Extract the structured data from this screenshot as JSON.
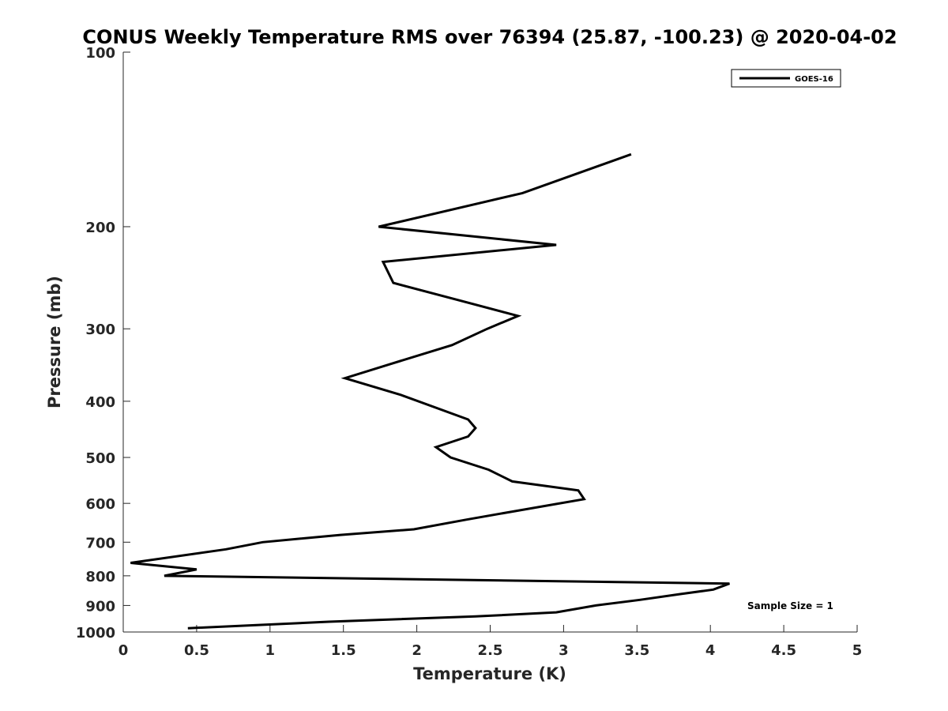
{
  "chart_data": {
    "type": "line",
    "title": "CONUS Weekly Temperature RMS over 76394 (25.87, -100.23) @ 2020-04-02",
    "xlabel": "Temperature (K)",
    "ylabel": "Pressure (mb)",
    "xlim": [
      0,
      5
    ],
    "ylim": [
      100,
      1000
    ],
    "y_scale": "log",
    "y_reversed": true,
    "grid": false,
    "legend_position": "top-right",
    "x_ticks": [
      "0",
      "0.5",
      "1",
      "1.5",
      "2",
      "2.5",
      "3",
      "3.5",
      "4",
      "4.5",
      "5"
    ],
    "y_ticks": [
      "100",
      "200",
      "300",
      "400",
      "500",
      "600",
      "700",
      "800",
      "900",
      "1000"
    ],
    "annotation": "Sample Size = 1",
    "series": [
      {
        "name": "GOES-16",
        "color": "#000000",
        "points": [
          {
            "temperature": 3.46,
            "pressure": 150
          },
          {
            "temperature": 2.72,
            "pressure": 175
          },
          {
            "temperature": 1.74,
            "pressure": 200
          },
          {
            "temperature": 2.95,
            "pressure": 215
          },
          {
            "temperature": 1.77,
            "pressure": 230
          },
          {
            "temperature": 1.84,
            "pressure": 250
          },
          {
            "temperature": 2.69,
            "pressure": 285
          },
          {
            "temperature": 2.48,
            "pressure": 300
          },
          {
            "temperature": 2.24,
            "pressure": 320
          },
          {
            "temperature": 1.82,
            "pressure": 345
          },
          {
            "temperature": 1.51,
            "pressure": 365
          },
          {
            "temperature": 1.89,
            "pressure": 390
          },
          {
            "temperature": 2.35,
            "pressure": 430
          },
          {
            "temperature": 2.4,
            "pressure": 445
          },
          {
            "temperature": 2.35,
            "pressure": 460
          },
          {
            "temperature": 2.13,
            "pressure": 480
          },
          {
            "temperature": 2.23,
            "pressure": 500
          },
          {
            "temperature": 2.49,
            "pressure": 525
          },
          {
            "temperature": 2.65,
            "pressure": 550
          },
          {
            "temperature": 3.1,
            "pressure": 570
          },
          {
            "temperature": 3.14,
            "pressure": 590
          },
          {
            "temperature": 2.65,
            "pressure": 620
          },
          {
            "temperature": 2.34,
            "pressure": 640
          },
          {
            "temperature": 1.98,
            "pressure": 665
          },
          {
            "temperature": 1.48,
            "pressure": 680
          },
          {
            "temperature": 0.95,
            "pressure": 700
          },
          {
            "temperature": 0.7,
            "pressure": 720
          },
          {
            "temperature": 0.05,
            "pressure": 760
          },
          {
            "temperature": 0.5,
            "pressure": 780
          },
          {
            "temperature": 0.28,
            "pressure": 800
          },
          {
            "temperature": 4.13,
            "pressure": 825
          },
          {
            "temperature": 4.02,
            "pressure": 845
          },
          {
            "temperature": 3.8,
            "pressure": 860
          },
          {
            "temperature": 3.52,
            "pressure": 880
          },
          {
            "temperature": 3.22,
            "pressure": 900
          },
          {
            "temperature": 2.95,
            "pressure": 925
          },
          {
            "temperature": 2.4,
            "pressure": 940
          },
          {
            "temperature": 1.4,
            "pressure": 960
          },
          {
            "temperature": 0.44,
            "pressure": 985
          }
        ]
      }
    ]
  }
}
